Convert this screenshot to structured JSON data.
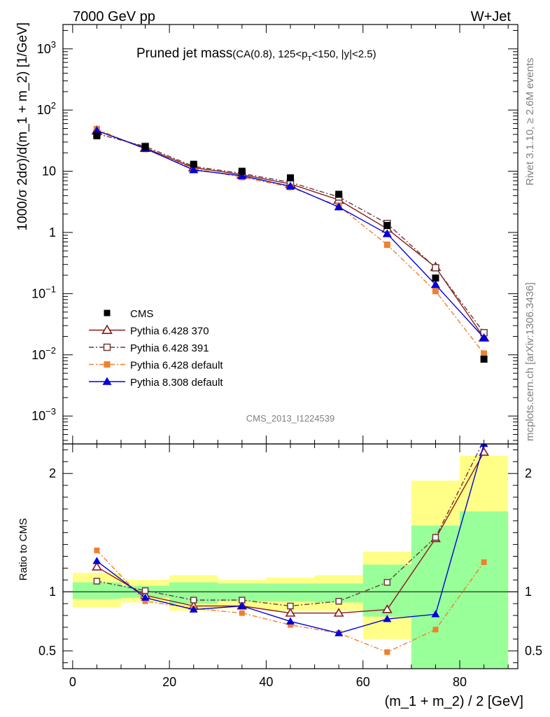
{
  "header": {
    "left": "7000 GeV pp",
    "right": "W+Jet",
    "title_main": "Pruned jet mass",
    "title_sub": "(CA(0.8), 125<p",
    "title_sub_T": "T",
    "title_sub_tail": "<150, |y|<2.5)",
    "analysis_id": "CMS_2013_I1224539",
    "side_right_top": "Rivet 3.1.10, ≥ 2.6M events",
    "side_right_bottom": "mcplots.cern.ch [arXiv:1306.3436]"
  },
  "chart_data": [
    {
      "type": "line",
      "panel": "main",
      "ylabel": "1000/σ 2dσ)/d(m_1 + m_2) [1/GeV]",
      "yscale": "log",
      "ylim": [
        0.00035,
        2500
      ],
      "xlim": [
        -2,
        92
      ],
      "y_ticks": [
        {
          "v": 0.001,
          "base": "10",
          "exp": "−3"
        },
        {
          "v": 0.01,
          "base": "10",
          "exp": "−2"
        },
        {
          "v": 0.1,
          "base": "10",
          "exp": "−1"
        },
        {
          "v": 1,
          "base": "1",
          "exp": ""
        },
        {
          "v": 10,
          "base": "10",
          "exp": ""
        },
        {
          "v": 100,
          "base": "10",
          "exp": "2"
        },
        {
          "v": 1000,
          "base": "10",
          "exp": "3"
        }
      ],
      "legend": [
        "CMS",
        "Pythia 6.428 370",
        "Pythia 6.428 391",
        "Pythia 6.428 default",
        "Pythia 8.308 default"
      ],
      "x": [
        5,
        15,
        25,
        35,
        45,
        55,
        65,
        75,
        85
      ],
      "data": {
        "name": "CMS",
        "values": [
          38,
          25,
          13,
          10,
          7.8,
          4.2,
          1.3,
          0.18,
          0.0085
        ]
      },
      "series": [
        {
          "name": "Pythia 6.428 370",
          "color": "#8b1a1a",
          "marker": "triangle-open",
          "dash": "",
          "values": [
            46,
            24,
            11.5,
            8.8,
            6.2,
            3.4,
            1.15,
            0.27,
            0.019
          ]
        },
        {
          "name": "Pythia 6.428 391",
          "color": "#6b3a3a",
          "marker": "square-open",
          "dash": "7,3,2,3",
          "values": [
            41,
            25.5,
            12,
            9.2,
            6.6,
            3.8,
            1.4,
            0.265,
            0.023
          ]
        },
        {
          "name": "Pythia 6.428 default",
          "color": "#f08030",
          "marker": "square-filled",
          "dash": "7,3,2,3",
          "values": [
            49,
            23,
            11,
            8.0,
            5.5,
            2.7,
            0.63,
            0.11,
            0.0105
          ]
        },
        {
          "name": "Pythia 8.308 default",
          "color": "#0000dd",
          "marker": "triangle-filled",
          "dash": "",
          "values": [
            46,
            23.5,
            10.5,
            8.4,
            5.7,
            2.6,
            0.95,
            0.14,
            0.019
          ]
        }
      ]
    },
    {
      "type": "line",
      "panel": "ratio",
      "ylabel": "Ratio to CMS",
      "xlabel": "(m_1 + m_2) / 2 [GeV]",
      "ylim": [
        0.35,
        2.25
      ],
      "xlim": [
        -2,
        92
      ],
      "x_ticks": [
        0,
        20,
        40,
        60,
        80
      ],
      "y_ticks": [
        0.5,
        1,
        2
      ],
      "bands": {
        "edges": [
          0,
          10,
          20,
          30,
          40,
          50,
          60,
          70,
          80,
          90
        ],
        "yellow": [
          [
            0.87,
            1.16
          ],
          [
            0.91,
            1.1
          ],
          [
            0.84,
            1.14
          ],
          [
            0.86,
            1.1
          ],
          [
            0.84,
            1.12
          ],
          [
            0.84,
            1.14
          ],
          [
            0.6,
            1.34
          ],
          [
            0.53,
            1.94
          ],
          [
            0.35,
            2.15
          ]
        ],
        "green": [
          [
            0.94,
            1.08
          ],
          [
            0.95,
            1.05
          ],
          [
            0.9,
            1.08
          ],
          [
            0.92,
            1.07
          ],
          [
            0.92,
            1.07
          ],
          [
            0.91,
            1.07
          ],
          [
            0.79,
            1.23
          ],
          [
            0.35,
            1.56
          ],
          [
            0.35,
            1.68
          ]
        ],
        "yellow_color": "#ffff88",
        "green_color": "#99ff99"
      },
      "x": [
        5,
        15,
        25,
        35,
        45,
        55,
        65,
        75,
        85
      ],
      "series": [
        {
          "name": "Pythia 6.428 370",
          "values": [
            1.21,
            0.97,
            0.88,
            0.88,
            0.82,
            0.82,
            0.85,
            1.45,
            2.18
          ]
        },
        {
          "name": "Pythia 6.428 391",
          "values": [
            1.09,
            1.01,
            0.93,
            0.93,
            0.88,
            0.92,
            1.08,
            1.46,
            2.28
          ]
        },
        {
          "name": "Pythia 6.428 default",
          "values": [
            1.35,
            0.92,
            0.86,
            0.82,
            0.72,
            0.65,
            0.49,
            0.68,
            1.25
          ]
        },
        {
          "name": "Pythia 8.308 default",
          "values": [
            1.26,
            0.95,
            0.85,
            0.88,
            0.75,
            0.65,
            0.77,
            0.81,
            2.25
          ]
        }
      ]
    }
  ]
}
